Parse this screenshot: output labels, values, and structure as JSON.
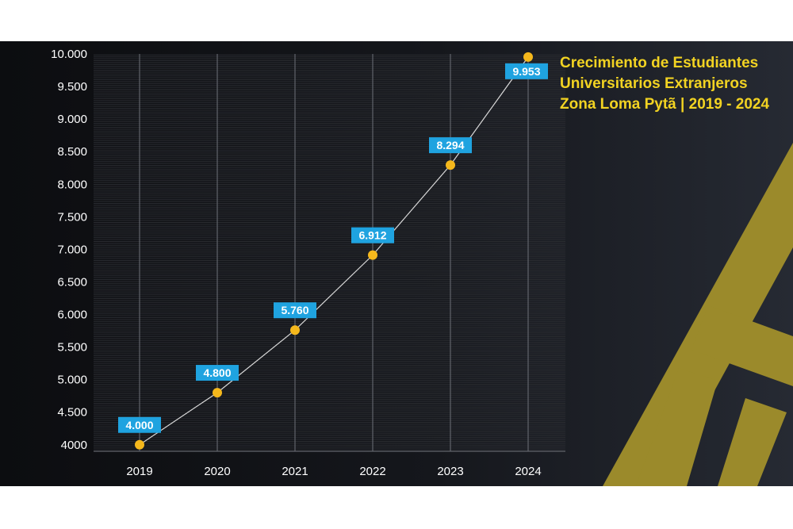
{
  "chart_data": {
    "type": "line",
    "title_lines": [
      "Crecimiento de Estudiantes",
      "Universitarios Extranjeros",
      "Zona Loma Pytã | 2019 - 2024"
    ],
    "categories": [
      "2019",
      "2020",
      "2021",
      "2022",
      "2023",
      "2024"
    ],
    "values": [
      4000,
      4800,
      5760,
      6912,
      8294,
      9953
    ],
    "data_labels": [
      "4.000",
      "4.800",
      "5.760",
      "6.912",
      "8.294",
      "9.953"
    ],
    "y_ticks": [
      {
        "value": 4000,
        "label": "4000"
      },
      {
        "value": 4500,
        "label": "4.500"
      },
      {
        "value": 5000,
        "label": "5.000"
      },
      {
        "value": 5500,
        "label": "5.500"
      },
      {
        "value": 6000,
        "label": "6.000"
      },
      {
        "value": 6500,
        "label": "6.500"
      },
      {
        "value": 7000,
        "label": "7.000"
      },
      {
        "value": 7500,
        "label": "7.500"
      },
      {
        "value": 8000,
        "label": "8.000"
      },
      {
        "value": 8500,
        "label": "8.500"
      },
      {
        "value": 9000,
        "label": "9.000"
      },
      {
        "value": 9500,
        "label": "9.500"
      },
      {
        "value": 10000,
        "label": "10.000"
      }
    ],
    "ylim": [
      3900,
      10000
    ],
    "xlabel": "",
    "ylabel": "",
    "grid": true,
    "legend": "none",
    "colors": {
      "line": "#d9d9d9",
      "marker": "#f5b81c",
      "label_box": "#1fa3e0",
      "title": "#f2d322",
      "accent_shapes": "#9b8a2b",
      "background": "#121419"
    }
  }
}
